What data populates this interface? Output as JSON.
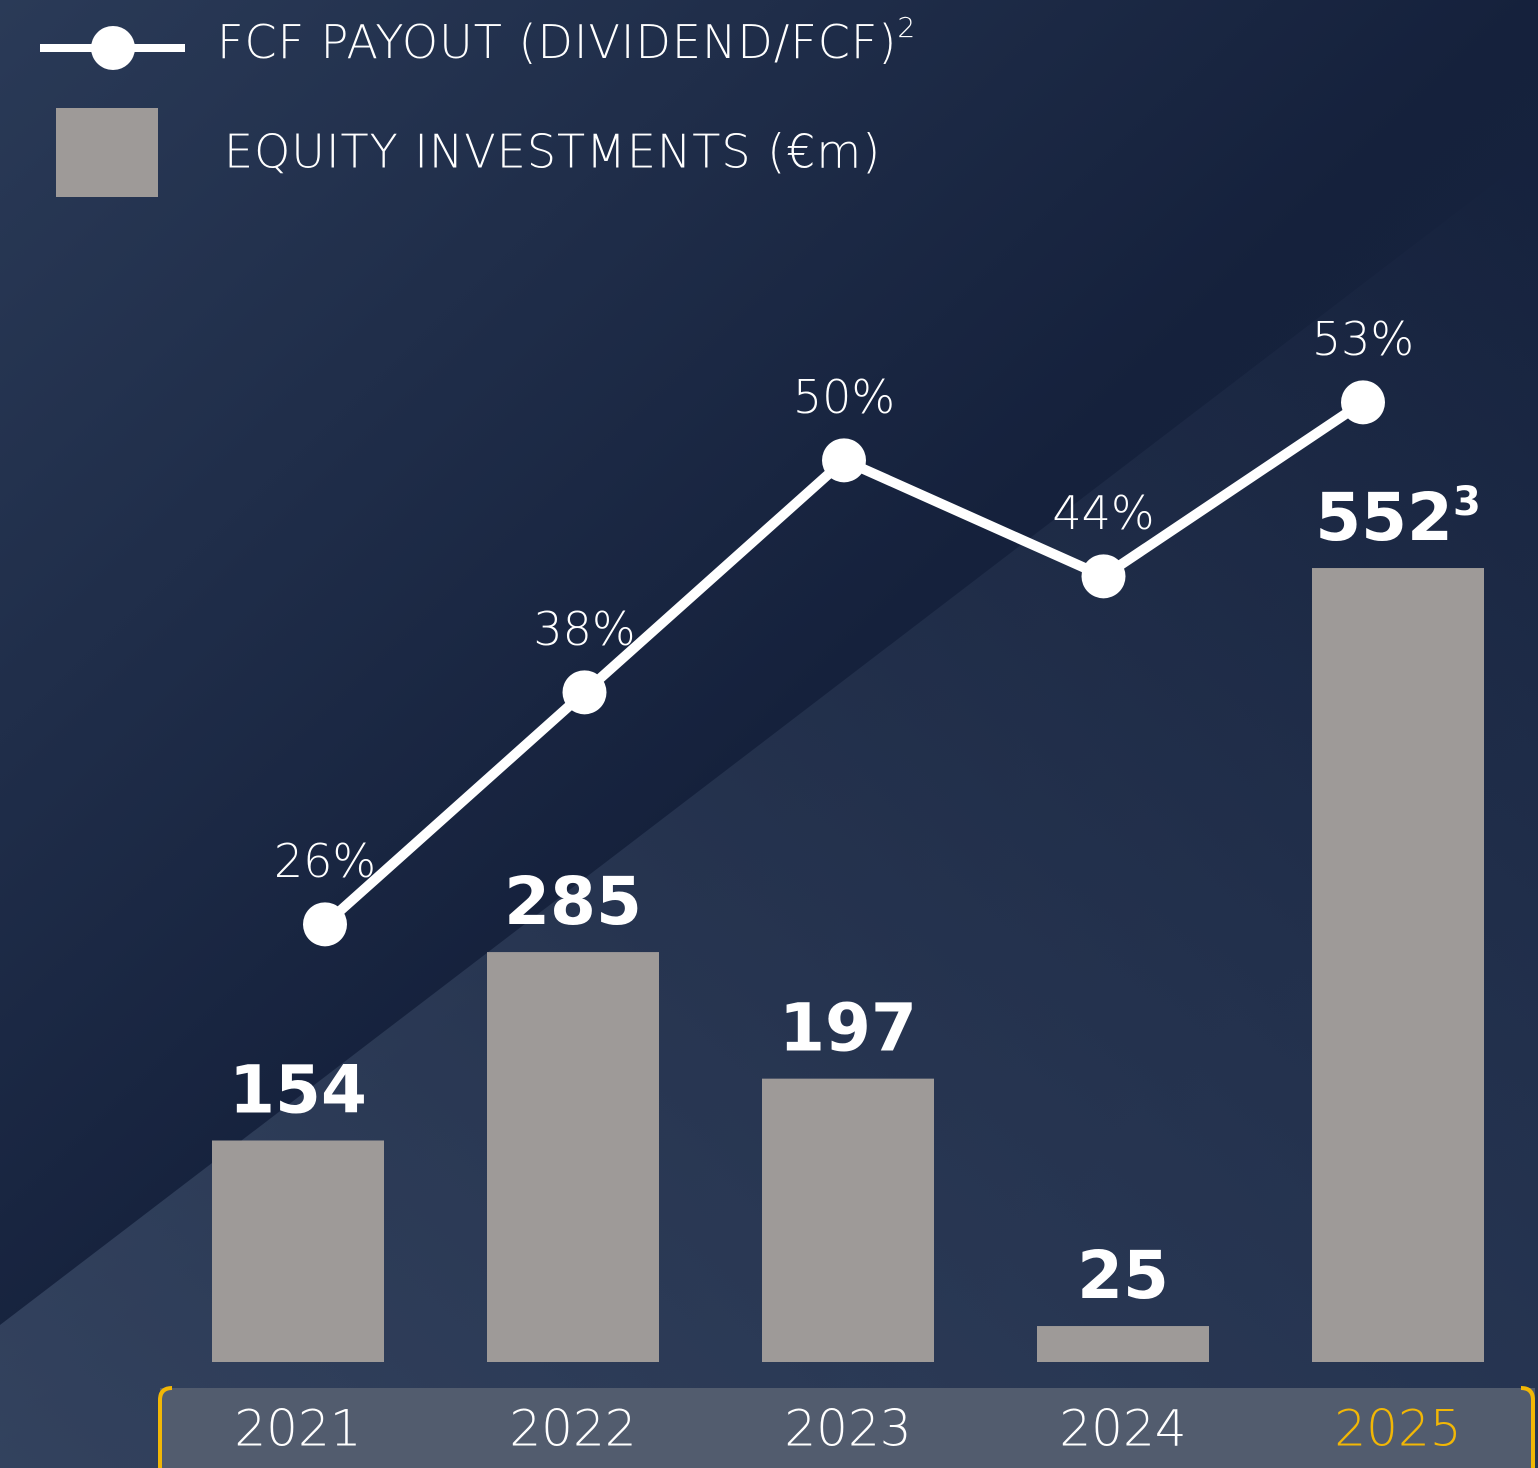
{
  "chart_data": {
    "type": "bar_line",
    "categories": [
      "2021",
      "2022",
      "2023",
      "2024",
      "2025"
    ],
    "series": [
      {
        "name": "EQUITY INVESTMENTS (€m)",
        "type": "bar",
        "color": "#9e9a98",
        "values": [
          154,
          285,
          197,
          25,
          552
        ],
        "footnotes": [
          null,
          null,
          null,
          null,
          "3"
        ]
      },
      {
        "name": "FCF PAYOUT (DIVIDEND/FCF)",
        "name_footnote": "2",
        "type": "line",
        "axis": "y2",
        "color": "#ffffff",
        "values": [
          26,
          38,
          50,
          44,
          53
        ],
        "value_labels": [
          "26%",
          "38%",
          "50%",
          "44%",
          "53%"
        ]
      }
    ],
    "ylim": [
      0,
      600
    ],
    "y2lim": [
      0,
      60
    ]
  }
}
